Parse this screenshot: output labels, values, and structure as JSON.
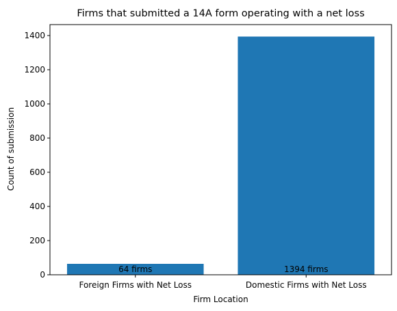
{
  "chart_data": {
    "type": "bar",
    "title": "Firms that submitted a 14A form operating with a net loss",
    "xlabel": "Firm Location",
    "ylabel": "Count of submission",
    "categories": [
      "Foreign Firms with Net Loss",
      "Domestic Firms with Net Loss"
    ],
    "values": [
      64,
      1394
    ],
    "data_labels": [
      "64 firms",
      "1394 firms"
    ],
    "ylim": [
      0,
      1464
    ],
    "yticks": [
      0,
      200,
      400,
      600,
      800,
      1000,
      1200,
      1400
    ],
    "grid": false,
    "bar_color": "#1f77b4"
  }
}
